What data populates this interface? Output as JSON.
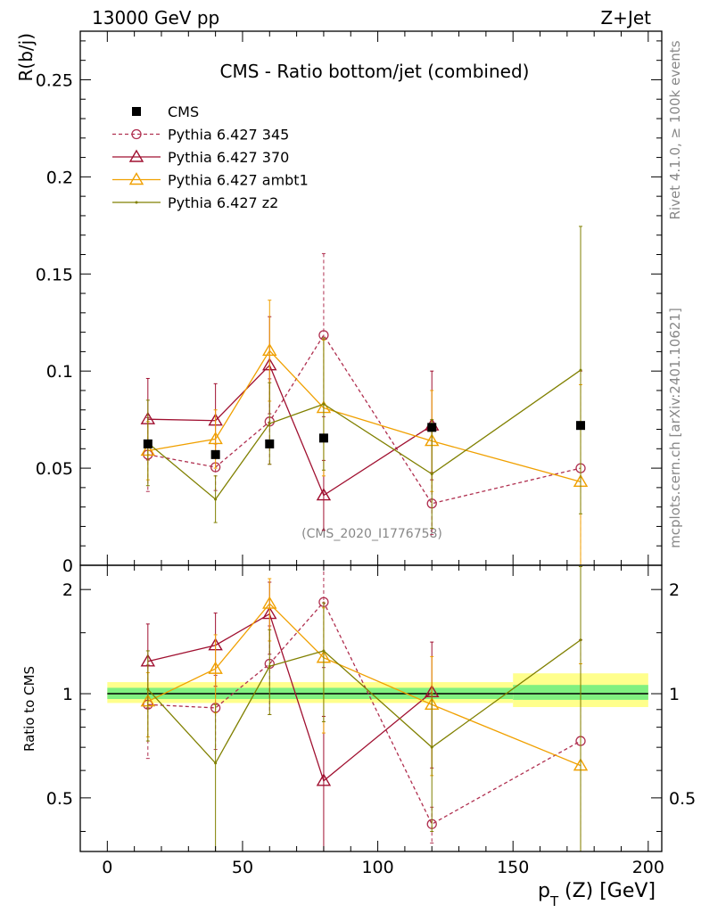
{
  "header": {
    "energy_label": "13000 GeV pp",
    "process_label": "Z+Jet",
    "rivet_label": "Rivet 4.1.0, ≥ 100k events",
    "mcplots_label": "mcplots.cern.ch [arXiv:2401.10621]",
    "analysis_id": "(CMS_2020_I1776758)"
  },
  "chart_data": [
    {
      "type": "scatter",
      "title": "CMS - Ratio bottom/jet (combined)",
      "xlabel": "p_T (Z) [GeV]",
      "x_label_main": "p",
      "x_label_sub": "T",
      "x_label_rest": " (Z) [GeV]",
      "ylabel": "R(b/j)",
      "xlim": [
        -10,
        205
      ],
      "ylim": [
        0,
        0.275
      ],
      "yticks": [
        0,
        0.05,
        0.1,
        0.15,
        0.2,
        0.25
      ],
      "ytick_labels": [
        "0",
        "0.05",
        "0.1",
        "0.15",
        "0.2",
        "0.25"
      ],
      "xticks": [
        0,
        50,
        100,
        150,
        200
      ],
      "xtick_labels": [
        "0",
        "50",
        "100",
        "150",
        "200"
      ],
      "legend_position": "top-left",
      "series": [
        {
          "name": "CMS",
          "style": "data",
          "color": "#000000",
          "x": [
            15,
            40,
            60,
            80,
            120,
            175
          ],
          "y": [
            0.0625,
            0.057,
            0.0625,
            0.0655,
            0.071,
            0.072
          ]
        },
        {
          "name": "Pythia 6.427 345",
          "style": "circle-dashed",
          "color": "#b03050",
          "x": [
            15,
            40,
            60,
            80,
            120,
            175
          ],
          "y": [
            0.057,
            0.0505,
            0.074,
            0.1185,
            0.0318,
            0.05
          ],
          "err": [
            0.019,
            0.012,
            0.022,
            0.042,
            0.016,
            0.05
          ]
        },
        {
          "name": "Pythia 6.427 370",
          "style": "triangle",
          "color": "#a01030",
          "x": [
            15,
            40,
            60,
            80,
            120
          ],
          "y": [
            0.0752,
            0.0745,
            0.103,
            0.036,
            0.072
          ],
          "err": [
            0.021,
            0.019,
            0.025,
            0.018,
            0.028
          ]
        },
        {
          "name": "Pythia 6.427 ambt1",
          "style": "triangle",
          "color": "#f0a000",
          "x": [
            15,
            40,
            60,
            80,
            120,
            175
          ],
          "y": [
            0.059,
            0.065,
            0.1105,
            0.081,
            0.064,
            0.043
          ],
          "err": [
            0.015,
            0.015,
            0.026,
            0.035,
            0.026,
            0.05
          ]
        },
        {
          "name": "Pythia 6.427 z2",
          "style": "line-dot",
          "color": "#808000",
          "x": [
            15,
            40,
            60,
            80,
            120,
            175
          ],
          "y": [
            0.063,
            0.034,
            0.073,
            0.083,
            0.047,
            0.1005
          ],
          "err": [
            0.022,
            0.012,
            0.021,
            0.034,
            0.028,
            0.074
          ]
        }
      ]
    },
    {
      "type": "scatter",
      "title": "",
      "xlabel": "p_T (Z) [GeV]",
      "ylabel": "Ratio to CMS",
      "xlim": [
        -10,
        205
      ],
      "ylim": [
        0.35,
        2.35
      ],
      "yscale": "log",
      "yticks": [
        0.5,
        1,
        2
      ],
      "ytick_labels": [
        "0.5",
        "1",
        "2"
      ],
      "reference_line": 1,
      "bands": [
        {
          "x_from": 0,
          "x_to": 150,
          "inner": [
            0.965,
            1.04
          ],
          "outer": [
            0.94,
            1.08
          ]
        },
        {
          "x_from": 150,
          "x_to": 200,
          "inner": [
            0.96,
            1.06
          ],
          "outer": [
            0.915,
            1.145
          ]
        }
      ],
      "series": [
        {
          "name": "Pythia 6.427 345",
          "color": "#b03050",
          "x": [
            15,
            40,
            60,
            80,
            120,
            175
          ],
          "y": [
            0.93,
            0.91,
            1.22,
            1.84,
            0.42,
            0.73
          ],
          "err_lo": [
            0.28,
            0.22,
            0.35,
            0.65,
            0.05,
            0.7
          ],
          "err_hi": [
            0.28,
            0.22,
            0.35,
            1.0,
            0.05,
            0.7
          ]
        },
        {
          "name": "Pythia 6.427 370",
          "color": "#a01030",
          "x": [
            15,
            40,
            60,
            80,
            120
          ],
          "y": [
            1.24,
            1.38,
            1.7,
            0.56,
            1.01
          ],
          "err_lo": [
            0.33,
            0.33,
            0.4,
            0.3,
            0.4
          ],
          "err_hi": [
            0.35,
            0.33,
            0.4,
            0.3,
            0.4
          ]
        },
        {
          "name": "Pythia 6.427 ambt1",
          "color": "#f0a000",
          "x": [
            15,
            40,
            60,
            80,
            120,
            175
          ],
          "y": [
            0.95,
            1.18,
            1.82,
            1.27,
            0.93,
            0.62
          ],
          "err_lo": [
            0.2,
            0.3,
            0.4,
            0.5,
            0.35,
            0.6
          ],
          "err_hi": [
            0.2,
            0.3,
            0.33,
            0.5,
            0.35,
            0.6
          ]
        },
        {
          "name": "Pythia 6.427 z2",
          "color": "#808000",
          "x": [
            15,
            40,
            60,
            80,
            120,
            175
          ],
          "y": [
            1.03,
            0.63,
            1.2,
            1.33,
            0.7,
            1.43
          ],
          "err_lo": [
            0.3,
            0.3,
            0.33,
            0.5,
            0.3,
            1.2
          ],
          "err_hi": [
            0.3,
            0.3,
            0.33,
            0.5,
            0.3,
            0.9
          ]
        }
      ]
    }
  ]
}
